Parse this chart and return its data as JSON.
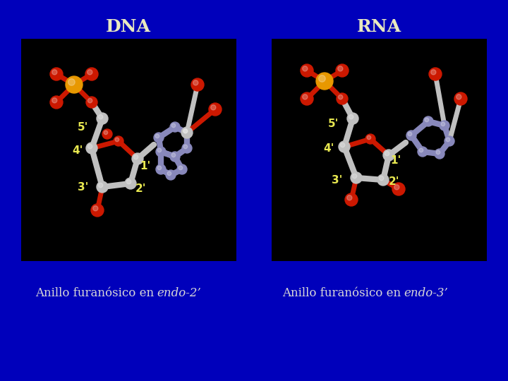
{
  "background_color": "#0000BB",
  "title_dna": "DNA",
  "title_rna": "RNA",
  "title_color": "#E8E8C0",
  "title_fontsize": 18,
  "panel_bg": "#000000",
  "label_color": "#E8E850",
  "label_fontsize": 11,
  "caption_color": "#D8D8D8",
  "caption_fontsize": 12,
  "caption_left_normal": "Anillo furanósico en ",
  "caption_left_italic": "endo-2’",
  "caption_right_normal": "Anillo furanósico en ",
  "caption_right_italic": "endo-3’"
}
